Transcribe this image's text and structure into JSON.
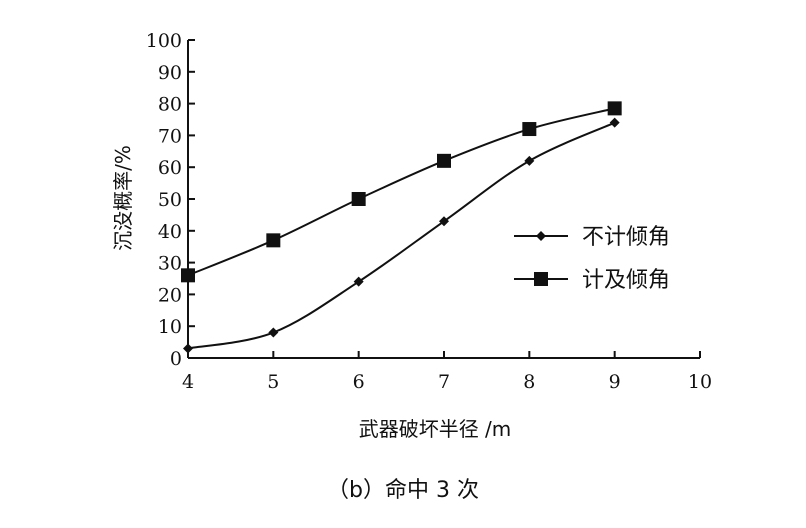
{
  "chart_data": {
    "type": "line",
    "x": [
      4,
      5,
      6,
      7,
      8,
      9
    ],
    "series": [
      {
        "name": "不计倾角",
        "marker": "diamond",
        "values": [
          3,
          8,
          24,
          43,
          62,
          74
        ]
      },
      {
        "name": "计及倾角",
        "marker": "square",
        "values": [
          26,
          37,
          50,
          62,
          72,
          78.5
        ]
      }
    ],
    "xlabel": "武器破坏半径 /m",
    "ylabel": "沉没概率/%",
    "xlim": [
      4,
      10
    ],
    "ylim": [
      0,
      100
    ],
    "xticks": [
      4,
      5,
      6,
      7,
      8,
      9,
      10
    ],
    "yticks": [
      0,
      10,
      20,
      30,
      40,
      50,
      60,
      70,
      80,
      90,
      100
    ],
    "grid": false,
    "legend_position": "right",
    "caption": "（b）命中 3 次",
    "line_color": "#111111"
  }
}
